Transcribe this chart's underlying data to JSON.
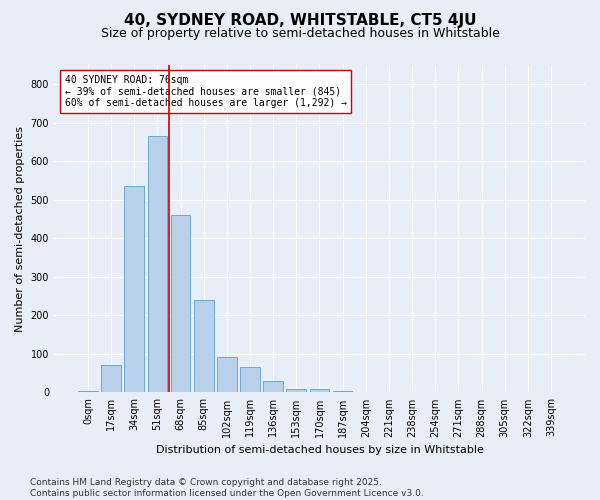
{
  "title": "40, SYDNEY ROAD, WHITSTABLE, CT5 4JU",
  "subtitle": "Size of property relative to semi-detached houses in Whitstable",
  "xlabel": "Distribution of semi-detached houses by size in Whitstable",
  "ylabel": "Number of semi-detached properties",
  "bar_values": [
    5,
    72,
    535,
    665,
    460,
    240,
    93,
    65,
    30,
    10,
    8,
    5,
    0,
    0,
    0,
    0,
    0,
    0,
    0,
    0,
    0
  ],
  "bin_labels": [
    "0sqm",
    "17sqm",
    "34sqm",
    "51sqm",
    "68sqm",
    "85sqm",
    "102sqm",
    "119sqm",
    "136sqm",
    "153sqm",
    "170sqm",
    "187sqm",
    "204sqm",
    "221sqm",
    "238sqm",
    "254sqm",
    "271sqm",
    "288sqm",
    "305sqm",
    "322sqm",
    "339sqm"
  ],
  "bar_color": "#b8d0ea",
  "bar_edge_color": "#6aaad4",
  "vline_color": "#cc0000",
  "vline_pos": 3.5,
  "annotation_text": "40 SYDNEY ROAD: 76sqm\n← 39% of semi-detached houses are smaller (845)\n60% of semi-detached houses are larger (1,292) →",
  "annotation_box_color": "#ffffff",
  "annotation_box_edge": "#cc0000",
  "ylim": [
    0,
    850
  ],
  "yticks": [
    0,
    100,
    200,
    300,
    400,
    500,
    600,
    700,
    800
  ],
  "footer": "Contains HM Land Registry data © Crown copyright and database right 2025.\nContains public sector information licensed under the Open Government Licence v3.0.",
  "bg_color": "#e8eef8",
  "plot_bg_color": "#e8eef8",
  "grid_color": "#ffffff",
  "title_fontsize": 11,
  "subtitle_fontsize": 9,
  "ylabel_fontsize": 8,
  "xlabel_fontsize": 8,
  "tick_fontsize": 7,
  "annotation_fontsize": 7,
  "footer_fontsize": 6.5
}
